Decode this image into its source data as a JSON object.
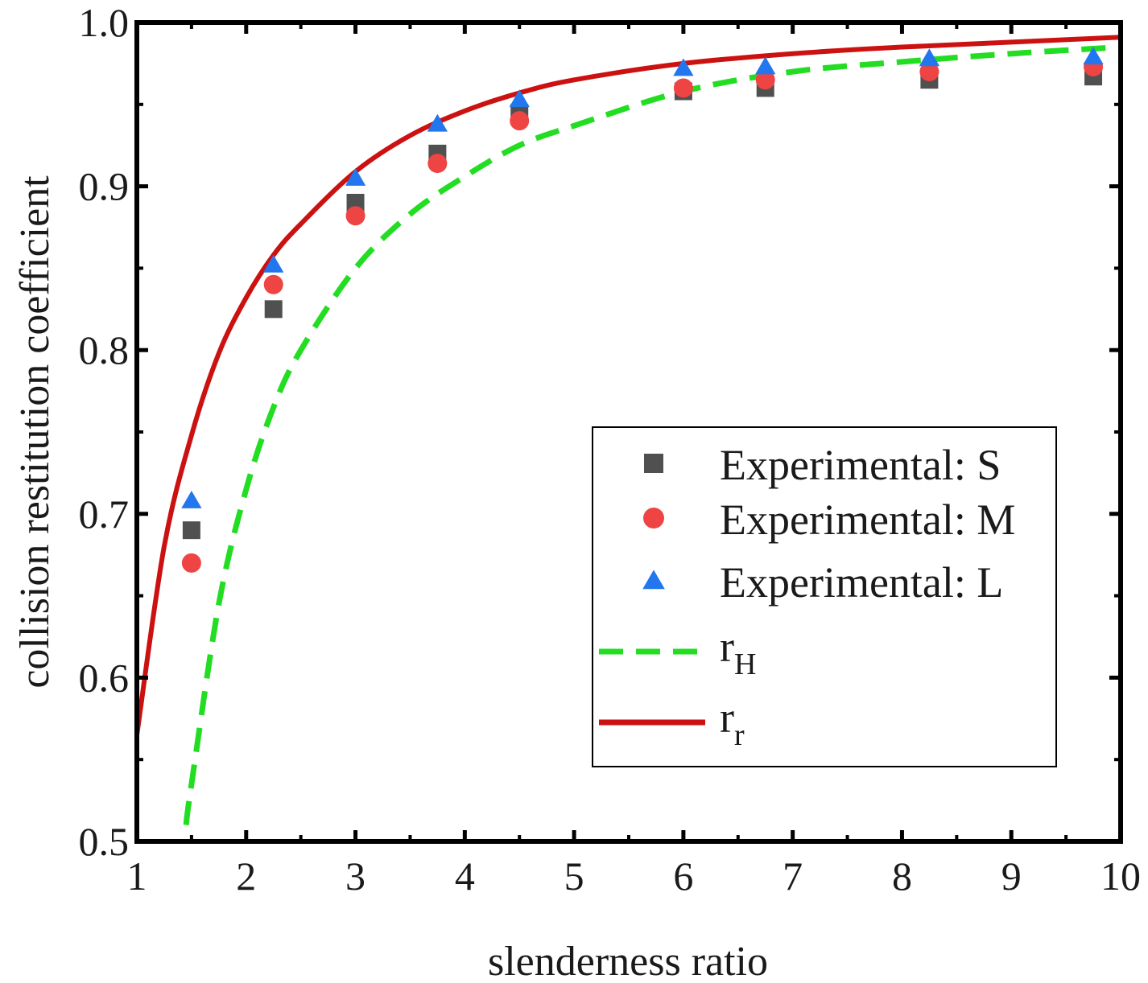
{
  "chart_data": {
    "type": "scatter",
    "title": "",
    "xlabel": "slenderness ratio",
    "ylabel": "collision restitution coefficient",
    "xlim": [
      1,
      10
    ],
    "ylim": [
      0.5,
      1.0
    ],
    "xticks": [
      "1",
      "2",
      "3",
      "4",
      "5",
      "6",
      "7",
      "8",
      "9",
      "10"
    ],
    "yticks": [
      "0.5",
      "0.6",
      "0.7",
      "0.8",
      "0.9",
      "1.0"
    ],
    "grid": false,
    "legend_position": "bottom-right",
    "series": [
      {
        "name": "Experimental: S",
        "kind": "points",
        "marker": "square",
        "color": "#505050",
        "x": [
          1.5,
          2.25,
          3.0,
          3.75,
          4.5,
          6.0,
          6.75,
          8.25,
          9.75
        ],
        "y": [
          0.69,
          0.825,
          0.89,
          0.92,
          0.945,
          0.958,
          0.96,
          0.965,
          0.967
        ]
      },
      {
        "name": "Experimental: M",
        "kind": "points",
        "marker": "circle",
        "color": "#ee4444",
        "x": [
          1.5,
          2.25,
          3.0,
          3.75,
          4.5,
          6.0,
          6.75,
          8.25,
          9.75
        ],
        "y": [
          0.67,
          0.84,
          0.882,
          0.914,
          0.94,
          0.96,
          0.965,
          0.97,
          0.973
        ]
      },
      {
        "name": "Experimental: L",
        "kind": "points",
        "marker": "triangle",
        "color": "#2277ee",
        "x": [
          1.5,
          2.25,
          3.0,
          3.75,
          4.5,
          6.0,
          6.75,
          8.25,
          9.75
        ],
        "y": [
          0.708,
          0.852,
          0.905,
          0.938,
          0.953,
          0.972,
          0.973,
          0.978,
          0.979
        ]
      },
      {
        "name": "r",
        "subscript": "H",
        "kind": "line",
        "style": "dashed",
        "color": "#22dd22",
        "x": [
          1.45,
          1.5,
          1.75,
          2.0,
          2.25,
          2.5,
          3.0,
          3.5,
          4.0,
          4.5,
          5.0,
          6.0,
          7.0,
          8.0,
          9.0,
          10.0
        ],
        "y": [
          0.51,
          0.535,
          0.645,
          0.715,
          0.765,
          0.8,
          0.85,
          0.883,
          0.906,
          0.925,
          0.937,
          0.958,
          0.97,
          0.976,
          0.981,
          0.985
        ]
      },
      {
        "name": "r",
        "subscript": "r",
        "kind": "line",
        "style": "solid",
        "color": "#cc1111",
        "x": [
          1.0,
          1.25,
          1.5,
          1.75,
          2.0,
          2.25,
          2.5,
          3.0,
          3.5,
          4.0,
          4.5,
          5.0,
          6.0,
          7.0,
          8.0,
          9.0,
          10.0
        ],
        "y": [
          0.565,
          0.68,
          0.748,
          0.798,
          0.832,
          0.858,
          0.877,
          0.909,
          0.931,
          0.946,
          0.957,
          0.965,
          0.975,
          0.981,
          0.985,
          0.988,
          0.991
        ]
      }
    ]
  }
}
